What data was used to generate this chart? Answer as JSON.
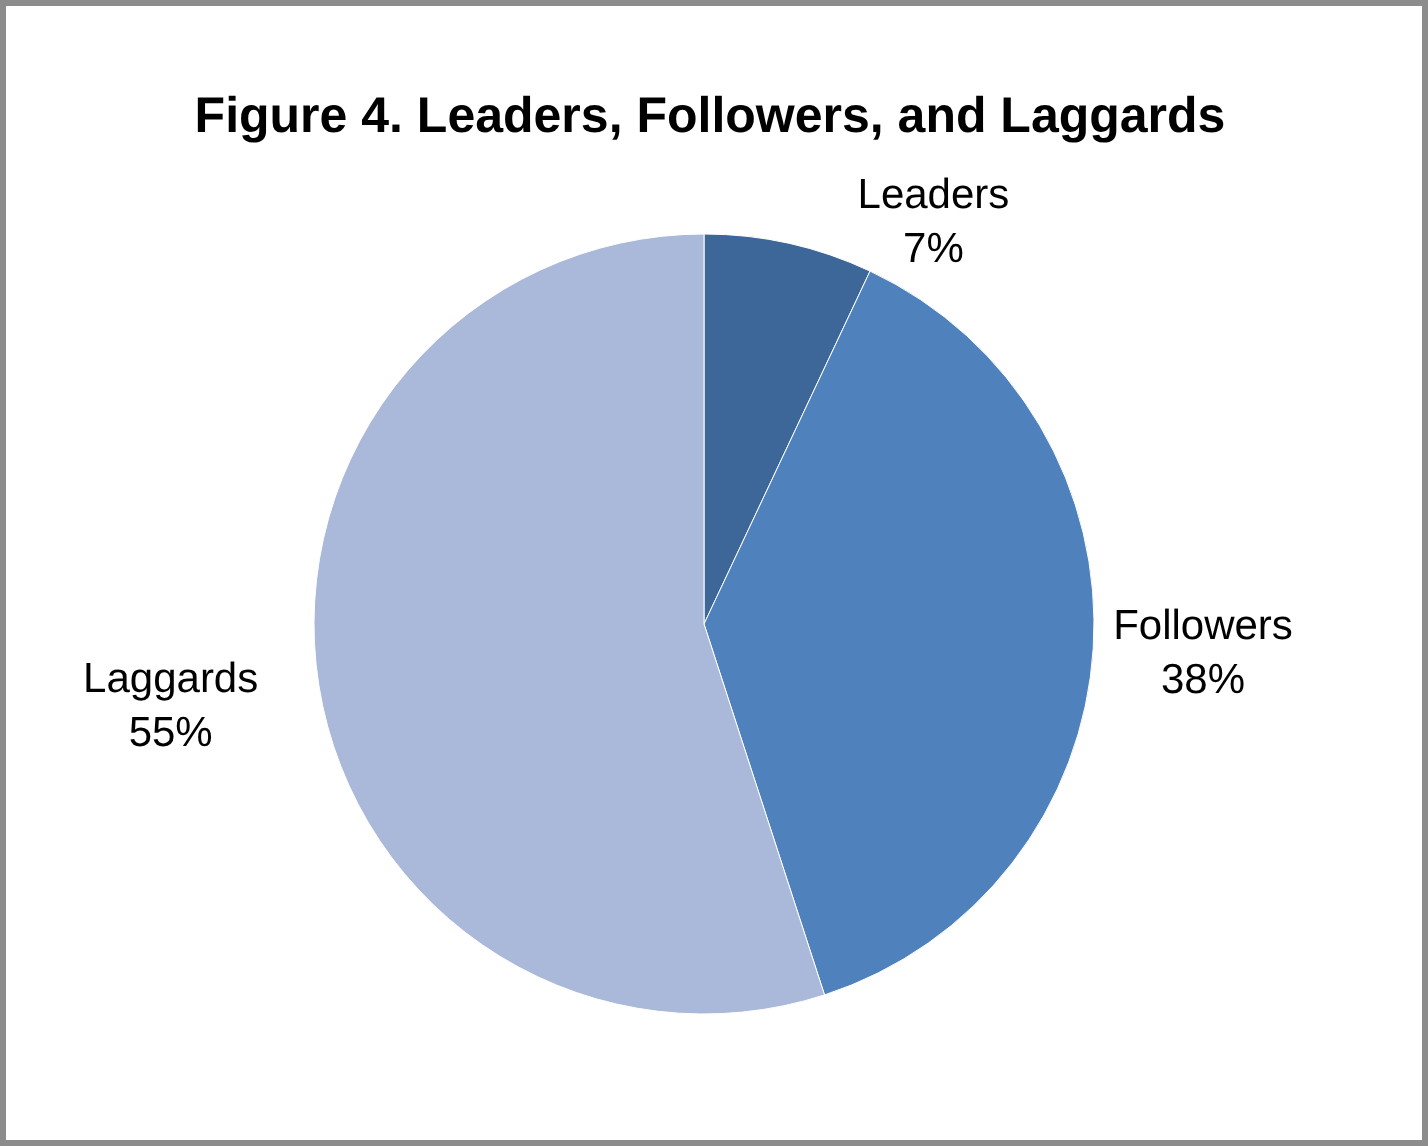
{
  "chart_data": {
    "type": "pie",
    "title": "Figure 4. Leaders, Followers, and Laggards",
    "categories": [
      "Leaders",
      "Followers",
      "Laggards"
    ],
    "values": [
      7,
      38,
      55
    ],
    "value_labels": [
      "7%",
      "38%",
      "55%"
    ],
    "colors": [
      "#3d6699",
      "#4f81bd",
      "#aab9d9"
    ]
  }
}
